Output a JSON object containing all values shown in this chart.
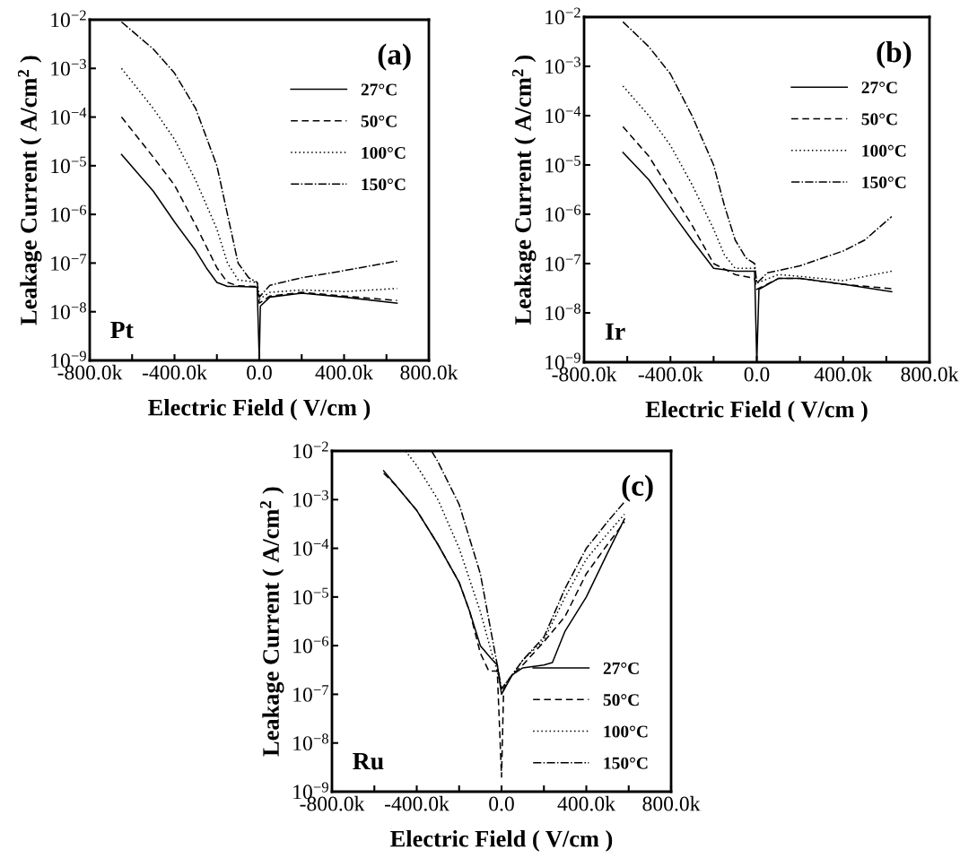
{
  "chart_data": [
    {
      "type": "line",
      "xlabel": "Electric Field ( V/cm )",
      "ylabel": "Leakage Current ( A/cm$^{2}$ )",
      "annotations": [
        "(a)",
        "Pt"
      ],
      "log": "y",
      "legend": "top right",
      "grid": false,
      "xlim": [
        -800000,
        800000
      ],
      "ylim": [
        1e-09,
        0.01
      ],
      "xticks": [
        {
          "value": -800000,
          "label": "-800.0k"
        },
        {
          "value": -600000,
          "label": null
        },
        {
          "value": -400000,
          "label": "-400.0k"
        },
        {
          "value": -200000,
          "label": null
        },
        {
          "value": 0,
          "label": "0.0"
        },
        {
          "value": 200000,
          "label": null
        },
        {
          "value": 400000,
          "label": "400.0k"
        },
        {
          "value": 600000,
          "label": null
        },
        {
          "value": 800000,
          "label": "800.0k"
        }
      ],
      "yticks": [
        {
          "value": 1e-09,
          "label": "10$^{−9}$"
        },
        {
          "value": 1e-08,
          "label": "10$^{−8}$"
        },
        {
          "value": 1e-07,
          "label": "10$^{−7}$"
        },
        {
          "value": 1e-06,
          "label": "10$^{−6}$"
        },
        {
          "value": 1e-05,
          "label": "10$^{−5}$"
        },
        {
          "value": 0.0001,
          "label": "10$^{−4}$"
        },
        {
          "value": 0.001,
          "label": "10$^{−3}$"
        },
        {
          "value": 0.01,
          "label": "10$^{−2}$"
        }
      ],
      "series": [
        {
          "name": "27°C",
          "color": "#000000",
          "line_style": "solid",
          "x": [
            -650000,
            -500000,
            -400000,
            -300000,
            -250000,
            -200000,
            -150000,
            -100000,
            -10000,
            0,
            5000,
            50000,
            200000,
            400000,
            650000
          ],
          "values": [
            1.7e-05,
            3e-06,
            7e-07,
            1.8e-07,
            8e-08,
            4e-08,
            3.3e-08,
            3.3e-08,
            3.2e-08,
            1e-09,
            1.3e-08,
            2e-08,
            2.4e-08,
            2e-08,
            1.5e-08
          ]
        },
        {
          "name": "50°C",
          "color": "#000000",
          "line_style": "dashed",
          "x": [
            -650000,
            -500000,
            -400000,
            -300000,
            -200000,
            -150000,
            -100000,
            -10000,
            0,
            50000,
            200000,
            400000,
            650000
          ],
          "values": [
            0.0001,
            1.5e-05,
            4e-06,
            6e-07,
            8e-08,
            4e-08,
            3.4e-08,
            3.3e-08,
            1.5e-08,
            2.1e-08,
            2.5e-08,
            2.1e-08,
            1.7e-08
          ]
        },
        {
          "name": "100°C",
          "color": "#000000",
          "line_style": "dotted",
          "x": [
            -650000,
            -500000,
            -400000,
            -300000,
            -200000,
            -150000,
            -100000,
            -10000,
            0,
            50000,
            200000,
            400000,
            650000
          ],
          "values": [
            0.001,
            0.00015,
            3.5e-05,
            5e-06,
            5e-07,
            1e-07,
            4.5e-08,
            4e-08,
            1.8e-08,
            2.5e-08,
            2.8e-08,
            2.6e-08,
            3e-08
          ]
        },
        {
          "name": "150°C",
          "color": "#000000",
          "line_style": "dashdot",
          "x": [
            -650000,
            -500000,
            -400000,
            -300000,
            -200000,
            -150000,
            -100000,
            -50000,
            -10000,
            0,
            50000,
            200000,
            400000,
            650000
          ],
          "values": [
            0.009,
            0.0025,
            0.0008,
            0.00015,
            1e-05,
            1e-06,
            1e-07,
            5e-08,
            4e-08,
            2e-08,
            3.5e-08,
            5e-08,
            7e-08,
            1.1e-07
          ]
        }
      ]
    },
    {
      "type": "line",
      "xlabel": "Electric Field ( V/cm )",
      "ylabel": "Leakage Current ( A/cm$^{2}$ )",
      "annotations": [
        "(b)",
        "Ir"
      ],
      "log": "y",
      "legend": "top right",
      "grid": false,
      "xlim": [
        -800000,
        800000
      ],
      "ylim": [
        1e-09,
        0.01
      ],
      "xticks": [
        {
          "value": -800000,
          "label": "-800.0k"
        },
        {
          "value": -600000,
          "label": null
        },
        {
          "value": -400000,
          "label": "-400.0k"
        },
        {
          "value": -200000,
          "label": null
        },
        {
          "value": 0,
          "label": "0.0"
        },
        {
          "value": 200000,
          "label": null
        },
        {
          "value": 400000,
          "label": "400.0k"
        },
        {
          "value": 600000,
          "label": null
        },
        {
          "value": 800000,
          "label": "800.0k"
        }
      ],
      "yticks": [
        {
          "value": 1e-09,
          "label": "10$^{−9}$"
        },
        {
          "value": 1e-08,
          "label": "10$^{−8}$"
        },
        {
          "value": 1e-07,
          "label": "10$^{−7}$"
        },
        {
          "value": 1e-06,
          "label": "10$^{−6}$"
        },
        {
          "value": 1e-05,
          "label": "10$^{−5}$"
        },
        {
          "value": 0.0001,
          "label": "10$^{−4}$"
        },
        {
          "value": 0.001,
          "label": "10$^{−3}$"
        },
        {
          "value": 0.01,
          "label": "10$^{−2}$"
        }
      ],
      "series": [
        {
          "name": "27°C",
          "color": "#000000",
          "line_style": "solid",
          "x": [
            -620000,
            -500000,
            -400000,
            -300000,
            -200000,
            -100000,
            -10000,
            0,
            10000,
            100000,
            200000,
            400000,
            625000
          ],
          "values": [
            1.8e-05,
            5e-06,
            1.2e-06,
            3e-07,
            8e-08,
            7e-08,
            7e-08,
            1e-09,
            3e-08,
            5e-08,
            5e-08,
            3.8e-08,
            2.7e-08
          ]
        },
        {
          "name": "50°C",
          "color": "#000000",
          "line_style": "dashed",
          "x": [
            -620000,
            -500000,
            -400000,
            -300000,
            -200000,
            -100000,
            -10000,
            0,
            100000,
            200000,
            400000,
            625000
          ],
          "values": [
            6e-05,
            1.5e-05,
            3e-06,
            6e-07,
            1e-07,
            6e-08,
            5e-08,
            3e-08,
            5e-08,
            5e-08,
            3.8e-08,
            3.1e-08
          ]
        },
        {
          "name": "100°C",
          "color": "#000000",
          "line_style": "dotted",
          "x": [
            -620000,
            -500000,
            -400000,
            -300000,
            -200000,
            -150000,
            -100000,
            -10000,
            0,
            100000,
            200000,
            400000,
            625000
          ],
          "values": [
            0.0004,
            0.0001,
            2.5e-05,
            4e-06,
            5e-07,
            1.5e-07,
            8e-08,
            8e-08,
            4e-08,
            6e-08,
            5.5e-08,
            4.5e-08,
            7e-08
          ]
        },
        {
          "name": "150°C",
          "color": "#000000",
          "line_style": "dashdot",
          "x": [
            -620000,
            -500000,
            -400000,
            -300000,
            -200000,
            -150000,
            -100000,
            -50000,
            -10000,
            0,
            50000,
            200000,
            400000,
            500000,
            625000
          ],
          "values": [
            0.008,
            0.0025,
            0.0007,
            0.0001,
            1e-05,
            1.5e-06,
            3e-07,
            1.3e-07,
            1e-07,
            4e-08,
            6.5e-08,
            9e-08,
            1.8e-07,
            3e-07,
            9e-07
          ]
        }
      ]
    },
    {
      "type": "line",
      "xlabel": "Electric Field ( V/cm )",
      "ylabel": "Leakage Current ( A/cm$^{2}$ )",
      "annotations": [
        "(c)",
        "Ru"
      ],
      "log": "y",
      "legend": "bottom right",
      "grid": false,
      "xlim": [
        -800000,
        800000
      ],
      "ylim": [
        1e-09,
        0.01
      ],
      "xticks": [
        {
          "value": -800000,
          "label": "-800.0k"
        },
        {
          "value": -600000,
          "label": null
        },
        {
          "value": -400000,
          "label": "-400.0k"
        },
        {
          "value": -200000,
          "label": null
        },
        {
          "value": 0,
          "label": "0.0"
        },
        {
          "value": 200000,
          "label": null
        },
        {
          "value": 400000,
          "label": "400.0k"
        },
        {
          "value": 600000,
          "label": null
        },
        {
          "value": 800000,
          "label": "800.0k"
        }
      ],
      "yticks": [
        {
          "value": 1e-09,
          "label": "10$^{−9}$"
        },
        {
          "value": 1e-08,
          "label": "10$^{−8}$"
        },
        {
          "value": 1e-07,
          "label": "10$^{−7}$"
        },
        {
          "value": 1e-06,
          "label": "10$^{−6}$"
        },
        {
          "value": 1e-05,
          "label": "10$^{−5}$"
        },
        {
          "value": 0.0001,
          "label": "10$^{−4}$"
        },
        {
          "value": 0.001,
          "label": "10$^{−3}$"
        },
        {
          "value": 0.01,
          "label": "10$^{−2}$"
        }
      ],
      "series": [
        {
          "name": "27°C",
          "color": "#000000",
          "line_style": "solid",
          "x": [
            -556000,
            -500000,
            -400000,
            -300000,
            -200000,
            -150000,
            -100000,
            -50000,
            -20000,
            0,
            10000,
            50000,
            100000,
            200000,
            240000,
            300000,
            400000,
            500000,
            580000
          ],
          "values": [
            0.0039,
            0.002,
            0.0006,
            0.00012,
            2e-05,
            5e-06,
            1e-06,
            5.5e-07,
            4e-07,
            1e-07,
            1.2e-07,
            2.5e-07,
            3.5e-07,
            4e-07,
            4.5e-07,
            2e-06,
            1e-05,
            8e-05,
            0.0004
          ]
        },
        {
          "name": "50°C",
          "color": "#000000",
          "line_style": "dashed",
          "x": [
            -556000,
            -500000,
            -400000,
            -300000,
            -200000,
            -150000,
            -100000,
            -60000,
            -20000,
            0,
            10000,
            50000,
            100000,
            200000,
            300000,
            400000,
            500000,
            580000
          ],
          "values": [
            0.0035,
            0.002,
            0.0006,
            0.00012,
            2e-05,
            5e-06,
            7e-07,
            3e-07,
            3e-07,
            2e-09,
            1.3e-07,
            2.5e-07,
            4e-07,
            1.2e-06,
            4e-06,
            3e-05,
            0.00012,
            0.00035
          ]
        },
        {
          "name": "100°C",
          "color": "#000000",
          "line_style": "dotted",
          "x": [
            -453000,
            -400000,
            -300000,
            -200000,
            -100000,
            -50000,
            -20000,
            0,
            50000,
            100000,
            200000,
            300000,
            400000,
            500000,
            580000
          ],
          "values": [
            0.01,
            0.005,
            0.001,
            0.0001,
            5e-06,
            8e-07,
            3e-07,
            1.3e-07,
            2.5e-07,
            5e-07,
            1.3e-06,
            1e-05,
            6e-05,
            0.0002,
            0.0005
          ]
        },
        {
          "name": "150°C",
          "color": "#000000",
          "line_style": "dashdot",
          "x": [
            -330000,
            -300000,
            -200000,
            -100000,
            -50000,
            -20000,
            0,
            50000,
            100000,
            200000,
            300000,
            400000,
            500000,
            580000
          ],
          "values": [
            0.01,
            0.006,
            0.0008,
            3e-05,
            2e-06,
            4e-07,
            1.3e-07,
            2.5e-07,
            5e-07,
            1.5e-06,
            1.5e-05,
            0.0001,
            0.00035,
            0.0009
          ]
        }
      ]
    }
  ]
}
